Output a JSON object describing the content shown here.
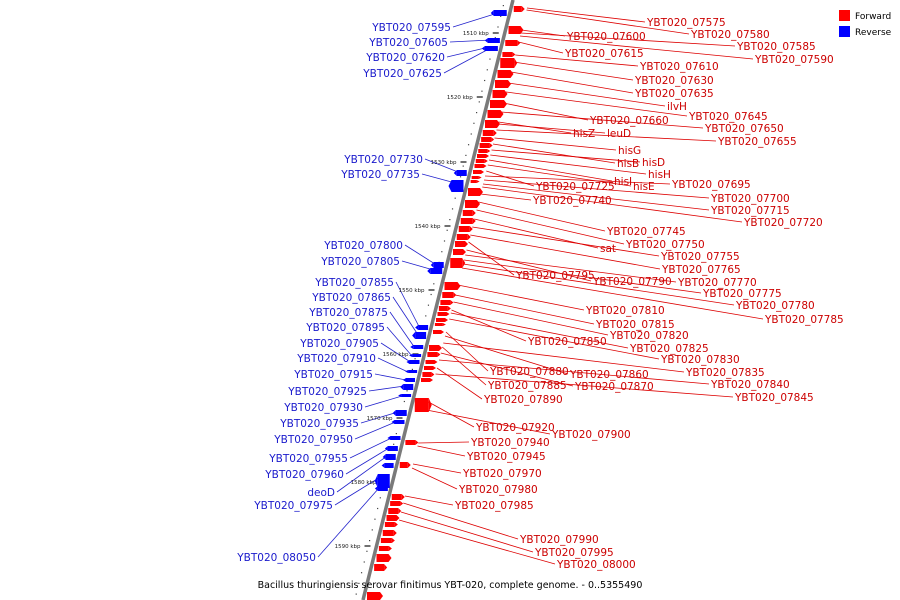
{
  "caption": "Bacillus thuringiensis serovar finitimus YBT-020, complete genome. - 0..5355490",
  "legend": [
    {
      "label": "Forward",
      "color": "#ff0000"
    },
    {
      "label": "Reverse",
      "color": "#0000ff"
    }
  ],
  "ticks": [
    "1510 kbp",
    "1520 kbp",
    "1530 kbp",
    "1540 kbp",
    "1550 kbp",
    "1560 kbp",
    "1570 kbp",
    "1580 kbp",
    "1590 kbp"
  ],
  "reverse_labels": [
    "YBT020_07595",
    "YBT020_07605",
    "YBT020_07620",
    "YBT020_07625",
    "YBT020_07730",
    "YBT020_07735",
    "YBT020_07800",
    "YBT020_07805",
    "YBT020_07855",
    "YBT020_07865",
    "YBT020_07875",
    "YBT020_07895",
    "YBT020_07905",
    "YBT020_07910",
    "YBT020_07915",
    "YBT020_07925",
    "YBT020_07930",
    "YBT020_07935",
    "YBT020_07950",
    "YBT020_07955",
    "YBT020_07960",
    "deoD",
    "YBT020_07975",
    "YBT020_08050"
  ],
  "forward_labels": [
    "YBT020_07575",
    "YBT020_07580",
    "YBT020_07600",
    "YBT020_07585",
    "YBT020_07615",
    "YBT020_07590",
    "YBT020_07610",
    "YBT020_07630",
    "YBT020_07635",
    "ilvH",
    "YBT020_07645",
    "YBT020_07660",
    "YBT020_07650",
    "hisZ",
    "leuD",
    "YBT020_07655",
    "hisG",
    "hisB",
    "hisD",
    "hisH",
    "hisI",
    "hisE",
    "YBT020_07725",
    "YBT020_07695",
    "YBT020_07700",
    "YBT020_07740",
    "YBT020_07715",
    "YBT020_07720",
    "YBT020_07745",
    "YBT020_07750",
    "sat",
    "YBT020_07755",
    "YBT020_07765",
    "YBT020_07795",
    "YBT020_07790",
    "YBT020_07770",
    "YBT020_07775",
    "YBT020_07780",
    "YBT020_07810",
    "YBT020_07785",
    "YBT020_07815",
    "YBT020_07820",
    "YBT020_07850",
    "YBT020_07825",
    "YBT020_07830",
    "YBT020_07880",
    "YBT020_07860",
    "YBT020_07835",
    "YBT020_07885",
    "YBT020_07870",
    "YBT020_07840",
    "YBT020_07890",
    "YBT020_07845",
    "YBT020_07920",
    "YBT020_07900",
    "YBT020_07940",
    "YBT020_07945",
    "YBT020_07970",
    "YBT020_07980",
    "YBT020_07985",
    "YBT020_07990",
    "YBT020_07995",
    "YBT020_08000"
  ]
}
